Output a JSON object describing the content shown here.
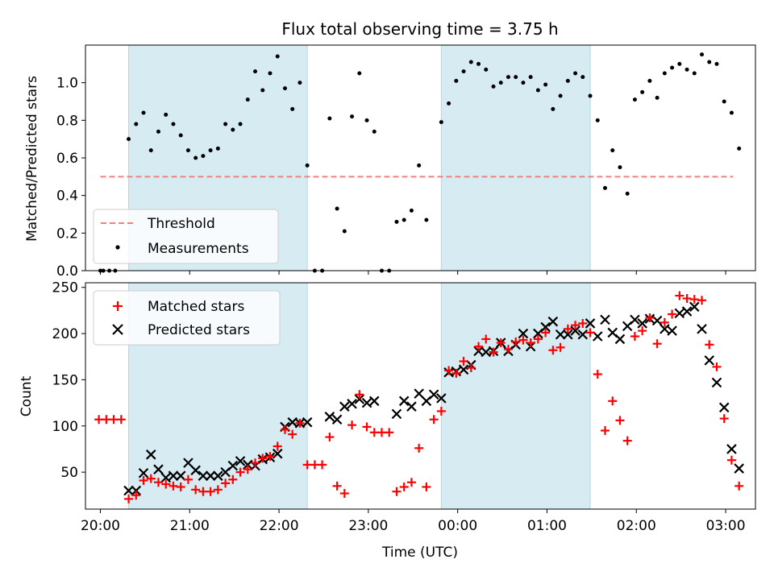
{
  "chart_data": [
    {
      "type": "scatter",
      "title": "Flux total observing time = 3.75 h",
      "xlabel": "",
      "ylabel": "Matched/Predicted stars",
      "xlim": [
        "19:50",
        "03:20"
      ],
      "ylim": [
        0,
        1.2
      ],
      "yticks": [
        "0.0",
        "0.2",
        "0.4",
        "0.6",
        "0.8",
        "1.0"
      ],
      "shaded_intervals": [
        [
          "20:19",
          "22:19"
        ],
        [
          "23:49",
          "01:29"
        ]
      ],
      "threshold": {
        "label": "Threshold",
        "value": 0.5,
        "x_start": "20:00",
        "x_end": "03:05",
        "color": "#f08080"
      },
      "legend": {
        "position": "lower-left",
        "entries": [
          "Threshold",
          "Measurements"
        ]
      },
      "series": [
        {
          "name": "Measurements",
          "marker": "dot",
          "color": "#000000",
          "points": [
            [
              "20:00",
              0.0
            ],
            [
              "20:02",
              0.0
            ],
            [
              "20:06",
              0.0
            ],
            [
              "20:10",
              0.0
            ],
            [
              "20:19",
              0.7
            ],
            [
              "20:24",
              0.78
            ],
            [
              "20:29",
              0.84
            ],
            [
              "20:34",
              0.64
            ],
            [
              "20:39",
              0.74
            ],
            [
              "20:44",
              0.83
            ],
            [
              "20:49",
              0.78
            ],
            [
              "20:54",
              0.72
            ],
            [
              "20:59",
              0.64
            ],
            [
              "21:04",
              0.6
            ],
            [
              "21:09",
              0.61
            ],
            [
              "21:14",
              0.64
            ],
            [
              "21:19",
              0.65
            ],
            [
              "21:24",
              0.78
            ],
            [
              "21:29",
              0.75
            ],
            [
              "21:34",
              0.78
            ],
            [
              "21:39",
              0.91
            ],
            [
              "21:44",
              1.06
            ],
            [
              "21:49",
              0.96
            ],
            [
              "21:54",
              1.05
            ],
            [
              "21:59",
              1.14
            ],
            [
              "22:04",
              0.97
            ],
            [
              "22:09",
              0.86
            ],
            [
              "22:14",
              1.0
            ],
            [
              "22:19",
              0.56
            ],
            [
              "22:24",
              0.0
            ],
            [
              "22:29",
              0.0
            ],
            [
              "22:34",
              0.81
            ],
            [
              "22:39",
              0.33
            ],
            [
              "22:44",
              0.21
            ],
            [
              "22:49",
              0.82
            ],
            [
              "22:54",
              1.05
            ],
            [
              "22:59",
              0.8
            ],
            [
              "23:04",
              0.74
            ],
            [
              "23:09",
              0.0
            ],
            [
              "23:14",
              0.0
            ],
            [
              "23:19",
              0.26
            ],
            [
              "23:24",
              0.27
            ],
            [
              "23:29",
              0.32
            ],
            [
              "23:34",
              0.56
            ],
            [
              "23:39",
              0.27
            ],
            [
              "23:49",
              0.79
            ],
            [
              "23:54",
              0.89
            ],
            [
              "23:59",
              1.01
            ],
            [
              "00:04",
              1.06
            ],
            [
              "00:09",
              1.11
            ],
            [
              "00:14",
              1.1
            ],
            [
              "00:19",
              1.07
            ],
            [
              "00:24",
              0.98
            ],
            [
              "00:29",
              1.0
            ],
            [
              "00:34",
              1.03
            ],
            [
              "00:39",
              1.03
            ],
            [
              "00:44",
              1.0
            ],
            [
              "00:49",
              1.03
            ],
            [
              "00:54",
              0.96
            ],
            [
              "00:59",
              0.99
            ],
            [
              "01:04",
              0.86
            ],
            [
              "01:09",
              0.93
            ],
            [
              "01:14",
              1.01
            ],
            [
              "01:19",
              1.05
            ],
            [
              "01:24",
              1.03
            ],
            [
              "01:29",
              0.93
            ],
            [
              "01:34",
              0.8
            ],
            [
              "01:39",
              0.44
            ],
            [
              "01:44",
              0.64
            ],
            [
              "01:49",
              0.55
            ],
            [
              "01:54",
              0.41
            ],
            [
              "01:59",
              0.91
            ],
            [
              "02:04",
              0.95
            ],
            [
              "02:09",
              1.01
            ],
            [
              "02:14",
              0.92
            ],
            [
              "02:19",
              1.05
            ],
            [
              "02:24",
              1.08
            ],
            [
              "02:29",
              1.1
            ],
            [
              "02:34",
              1.07
            ],
            [
              "02:39",
              1.05
            ],
            [
              "02:44",
              1.15
            ],
            [
              "02:49",
              1.11
            ],
            [
              "02:54",
              1.1
            ],
            [
              "02:59",
              0.9
            ],
            [
              "03:04",
              0.84
            ],
            [
              "03:09",
              0.65
            ]
          ]
        }
      ]
    },
    {
      "type": "scatter",
      "title": "",
      "xlabel": "Time (UTC)",
      "ylabel": "Count",
      "xlim": [
        "19:50",
        "03:20"
      ],
      "ylim": [
        10,
        255
      ],
      "xticks": [
        "20:00",
        "21:00",
        "22:00",
        "23:00",
        "00:00",
        "01:00",
        "02:00",
        "03:00"
      ],
      "yticks": [
        "50",
        "100",
        "150",
        "200",
        "250"
      ],
      "shaded_intervals": [
        [
          "20:19",
          "22:19"
        ],
        [
          "23:49",
          "01:29"
        ]
      ],
      "legend": {
        "position": "upper-left",
        "entries": [
          "Matched stars",
          "Predicted stars"
        ]
      },
      "series": [
        {
          "name": "Matched stars",
          "marker": "plus",
          "color": "#ff0000",
          "points": [
            [
              "19:59",
              107
            ],
            [
              "20:04",
              107
            ],
            [
              "20:09",
              107
            ],
            [
              "20:14",
              107
            ],
            [
              "20:19",
              21
            ],
            [
              "20:24",
              25
            ],
            [
              "20:29",
              41
            ],
            [
              "20:34",
              43
            ],
            [
              "20:39",
              39
            ],
            [
              "20:44",
              37
            ],
            [
              "20:49",
              35
            ],
            [
              "20:54",
              34
            ],
            [
              "20:59",
              42
            ],
            [
              "21:04",
              31
            ],
            [
              "21:09",
              29
            ],
            [
              "21:14",
              29
            ],
            [
              "21:19",
              31
            ],
            [
              "21:24",
              38
            ],
            [
              "21:29",
              42
            ],
            [
              "21:34",
              50
            ],
            [
              "21:39",
              53
            ],
            [
              "21:44",
              60
            ],
            [
              "21:49",
              65
            ],
            [
              "21:54",
              67
            ],
            [
              "21:59",
              78
            ],
            [
              "22:04",
              96
            ],
            [
              "22:09",
              91
            ],
            [
              "22:14",
              103
            ],
            [
              "22:19",
              58
            ],
            [
              "22:24",
              58
            ],
            [
              "22:29",
              58
            ],
            [
              "22:34",
              88
            ],
            [
              "22:39",
              35
            ],
            [
              "22:44",
              27
            ],
            [
              "22:49",
              101
            ],
            [
              "22:54",
              134
            ],
            [
              "22:59",
              99
            ],
            [
              "23:04",
              93
            ],
            [
              "23:09",
              93
            ],
            [
              "23:14",
              93
            ],
            [
              "23:19",
              29
            ],
            [
              "23:24",
              34
            ],
            [
              "23:29",
              39
            ],
            [
              "23:34",
              76
            ],
            [
              "23:39",
              34
            ],
            [
              "23:44",
              107
            ],
            [
              "23:49",
              116
            ],
            [
              "23:54",
              160
            ],
            [
              "23:59",
              157
            ],
            [
              "00:04",
              170
            ],
            [
              "00:09",
              163
            ],
            [
              "00:14",
              186
            ],
            [
              "00:19",
              194
            ],
            [
              "00:24",
              180
            ],
            [
              "00:29",
              190
            ],
            [
              "00:34",
              183
            ],
            [
              "00:39",
              191
            ],
            [
              "00:44",
              193
            ],
            [
              "00:49",
              190
            ],
            [
              "00:54",
              194
            ],
            [
              "00:59",
              201
            ],
            [
              "01:04",
              182
            ],
            [
              "01:09",
              185
            ],
            [
              "01:14",
              205
            ],
            [
              "01:19",
              209
            ],
            [
              "01:24",
              211
            ],
            [
              "01:29",
              201
            ],
            [
              "01:34",
              156
            ],
            [
              "01:39",
              95
            ],
            [
              "01:44",
              127
            ],
            [
              "01:49",
              106
            ],
            [
              "01:54",
              84
            ],
            [
              "01:59",
              197
            ],
            [
              "02:04",
              203
            ],
            [
              "02:09",
              217
            ],
            [
              "02:14",
              189
            ],
            [
              "02:19",
              212
            ],
            [
              "02:24",
              221
            ],
            [
              "02:29",
              241
            ],
            [
              "02:34",
              238
            ],
            [
              "02:39",
              237
            ],
            [
              "02:44",
              236
            ],
            [
              "02:49",
              188
            ],
            [
              "02:54",
              164
            ],
            [
              "02:59",
              108
            ],
            [
              "03:04",
              63
            ],
            [
              "03:09",
              35
            ]
          ]
        },
        {
          "name": "Predicted stars",
          "marker": "x",
          "color": "#000000",
          "points": [
            [
              "20:19",
              30
            ],
            [
              "20:24",
              30
            ],
            [
              "20:29",
              49
            ],
            [
              "20:34",
              69
            ],
            [
              "20:39",
              53
            ],
            [
              "20:44",
              44
            ],
            [
              "20:49",
              46
            ],
            [
              "20:54",
              46
            ],
            [
              "20:59",
              60
            ],
            [
              "21:04",
              52
            ],
            [
              "21:09",
              46
            ],
            [
              "21:14",
              46
            ],
            [
              "21:19",
              46
            ],
            [
              "21:24",
              50
            ],
            [
              "21:29",
              57
            ],
            [
              "21:34",
              62
            ],
            [
              "21:39",
              58
            ],
            [
              "21:44",
              57
            ],
            [
              "21:49",
              64
            ],
            [
              "21:54",
              66
            ],
            [
              "21:59",
              70
            ],
            [
              "22:04",
              99
            ],
            [
              "22:09",
              104
            ],
            [
              "22:14",
              103
            ],
            [
              "22:19",
              104
            ],
            [
              "22:34",
              110
            ],
            [
              "22:39",
              107
            ],
            [
              "22:44",
              121
            ],
            [
              "22:49",
              124
            ],
            [
              "22:54",
              129
            ],
            [
              "22:59",
              125
            ],
            [
              "23:04",
              127
            ],
            [
              "23:19",
              113
            ],
            [
              "23:24",
              127
            ],
            [
              "23:29",
              121
            ],
            [
              "23:34",
              135
            ],
            [
              "23:39",
              127
            ],
            [
              "23:44",
              134
            ],
            [
              "23:49",
              130
            ],
            [
              "23:54",
              158
            ],
            [
              "23:59",
              159
            ],
            [
              "00:04",
              161
            ],
            [
              "00:09",
              166
            ],
            [
              "00:14",
              181
            ],
            [
              "00:19",
              180
            ],
            [
              "00:24",
              181
            ],
            [
              "00:29",
              190
            ],
            [
              "00:34",
              181
            ],
            [
              "00:39",
              188
            ],
            [
              "00:44",
              200
            ],
            [
              "00:49",
              186
            ],
            [
              "00:54",
              200
            ],
            [
              "00:59",
              207
            ],
            [
              "01:04",
              213
            ],
            [
              "01:09",
              199
            ],
            [
              "01:14",
              199
            ],
            [
              "01:19",
              203
            ],
            [
              "01:24",
              199
            ],
            [
              "01:29",
              211
            ],
            [
              "01:34",
              197
            ],
            [
              "01:39",
              215
            ],
            [
              "01:44",
              201
            ],
            [
              "01:49",
              194
            ],
            [
              "01:54",
              208
            ],
            [
              "01:59",
              215
            ],
            [
              "02:04",
              211
            ],
            [
              "02:09",
              216
            ],
            [
              "02:14",
              214
            ],
            [
              "02:19",
              205
            ],
            [
              "02:24",
              203
            ],
            [
              "02:29",
              222
            ],
            [
              "02:34",
              224
            ],
            [
              "02:39",
              229
            ],
            [
              "02:44",
              205
            ],
            [
              "02:49",
              171
            ],
            [
              "02:54",
              147
            ],
            [
              "02:59",
              120
            ],
            [
              "03:04",
              75
            ],
            [
              "03:09",
              54
            ]
          ]
        }
      ]
    }
  ]
}
